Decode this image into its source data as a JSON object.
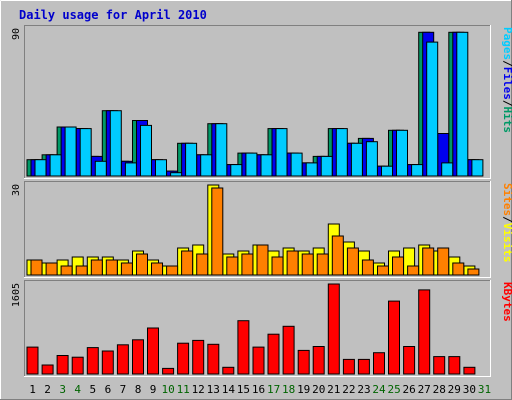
{
  "chart_data": {
    "type": "bar",
    "title": "Daily usage for April 2010",
    "x_labels": [
      "1",
      "2",
      "3",
      "4",
      "5",
      "6",
      "7",
      "8",
      "9",
      "10",
      "11",
      "12",
      "13",
      "14",
      "15",
      "16",
      "17",
      "18",
      "19",
      "20",
      "21",
      "22",
      "23",
      "24",
      "25",
      "26",
      "27",
      "28",
      "29",
      "30",
      "31"
    ],
    "weekend_days": [
      3,
      4,
      10,
      11,
      17,
      18,
      24,
      25,
      31
    ],
    "colors": {
      "background": "#c0c0c0",
      "frame": "#ffffff",
      "title": "#0000cc",
      "weekday_label": "#000000",
      "weekend_label": "#006400",
      "pages": "#00ccff",
      "files": "#0000ee",
      "hits": "#009966",
      "sites": "#ff8000",
      "visits": "#ffff00",
      "kbytes": "#ff0000"
    },
    "panels": [
      {
        "id": "hits",
        "ymax_label": "90",
        "ylim": [
          0,
          90
        ],
        "legend": [
          "Pages",
          "/",
          "Files",
          "/",
          "Hits"
        ],
        "legend_colors": [
          "#00ccff",
          "#000000",
          "#0000ee",
          "#000000",
          "#009966"
        ],
        "series": [
          {
            "name": "Hits",
            "color": "#009966",
            "values": [
              10,
              13,
              30,
              29,
              12,
              40,
              9,
              34,
              10,
              3,
              20,
              13,
              32,
              7,
              14,
              13,
              29,
              14,
              8,
              12,
              29,
              20,
              23,
              6,
              28,
              7,
              88,
              26,
              88,
              10,
              null
            ]
          },
          {
            "name": "Files",
            "color": "#0000ee",
            "values": [
              10,
              13,
              30,
              29,
              12,
              40,
              9,
              34,
              10,
              3,
              20,
              13,
              32,
              7,
              14,
              13,
              29,
              14,
              8,
              12,
              29,
              20,
              23,
              6,
              28,
              7,
              88,
              26,
              88,
              10,
              null
            ]
          },
          {
            "name": "Pages",
            "color": "#00ccff",
            "values": [
              10,
              13,
              30,
              29,
              9,
              40,
              8,
              31,
              10,
              2,
              20,
              13,
              32,
              7,
              14,
              13,
              29,
              14,
              8,
              12,
              29,
              20,
              21,
              6,
              28,
              7,
              82,
              8,
              88,
              10,
              null
            ]
          }
        ]
      },
      {
        "id": "sites",
        "ymax_label": "30",
        "ylim": [
          0,
          30
        ],
        "legend": [
          "Sites",
          "/",
          "Visits"
        ],
        "legend_colors": [
          "#ff8000",
          "#000000",
          "#ffff00"
        ],
        "series": [
          {
            "name": "Visits",
            "color": "#ffff00",
            "values": [
              5,
              4,
              5,
              6,
              6,
              6,
              5,
              8,
              5,
              3,
              9,
              10,
              30,
              7,
              8,
              10,
              8,
              9,
              8,
              9,
              17,
              11,
              8,
              4,
              8,
              9,
              10,
              8,
              6,
              3,
              null
            ]
          },
          {
            "name": "Sites",
            "color": "#ff8000",
            "values": [
              5,
              4,
              3,
              3,
              5,
              5,
              4,
              7,
              4,
              3,
              8,
              7,
              29,
              6,
              7,
              10,
              6,
              8,
              7,
              7,
              13,
              9,
              5,
              3,
              6,
              3,
              9,
              9,
              4,
              2,
              null
            ]
          }
        ]
      },
      {
        "id": "kbytes",
        "ymax_label": "1605",
        "ylim": [
          0,
          1605
        ],
        "legend": [
          "KBytes"
        ],
        "legend_colors": [
          "#ff0000"
        ],
        "series": [
          {
            "name": "KBytes",
            "color": "#ff0000",
            "values": [
              480,
              160,
              330,
              300,
              470,
              410,
              520,
              610,
              820,
              100,
              550,
              600,
              530,
              120,
              950,
              480,
              710,
              850,
              420,
              490,
              1605,
              260,
              260,
              380,
              1300,
              490,
              1500,
              310,
              310,
              120,
              null
            ]
          }
        ]
      }
    ]
  }
}
